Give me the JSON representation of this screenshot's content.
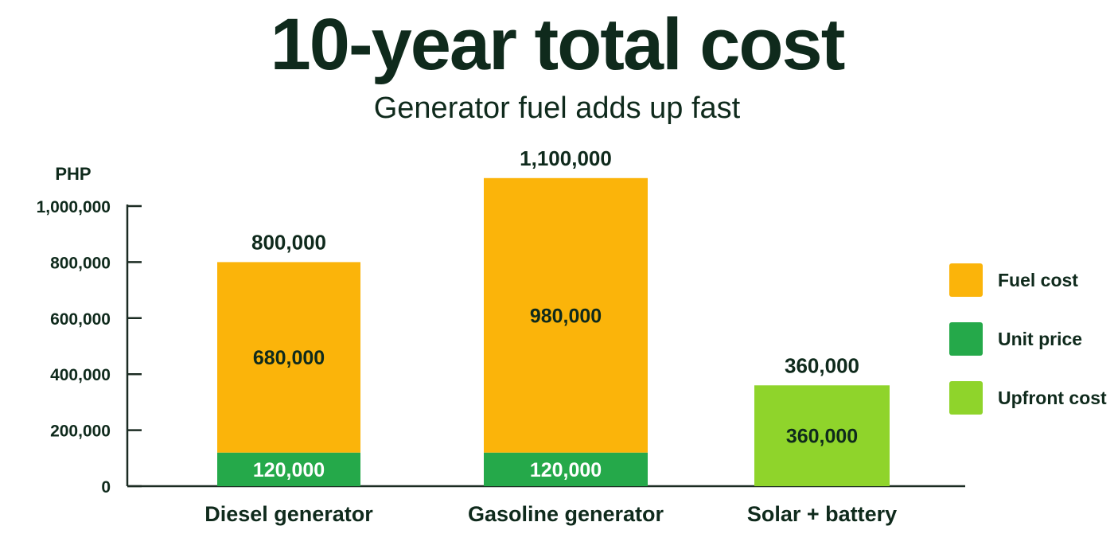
{
  "title": "10-year total cost",
  "subtitle": "Generator fuel adds up fast",
  "colors": {
    "text": "#0f2a1c",
    "fuel": "#fbb40a",
    "unit": "#25a94a",
    "upfront": "#8fd42b",
    "axis": "#1b2b22"
  },
  "legend": [
    {
      "label": "Fuel cost",
      "color": "#fbb40a"
    },
    {
      "label": "Unit price",
      "color": "#25a94a"
    },
    {
      "label": "Upfront cost",
      "color": "#8fd42b"
    }
  ],
  "chart_data": {
    "type": "bar",
    "stacked": true,
    "title": "10-year total cost",
    "subtitle": "Generator fuel adds up fast",
    "ylabel": "PHP",
    "xlabel": "",
    "ylim": [
      0,
      1000000
    ],
    "yticks": [
      0,
      200000,
      400000,
      600000,
      800000,
      1000000
    ],
    "ytick_labels": [
      "0",
      "200,000",
      "400,000",
      "600,000",
      "800,000",
      "1,000,000"
    ],
    "grid": false,
    "legend_position": "right",
    "categories": [
      "Diesel generator",
      "Gasoline generator",
      "Solar + battery"
    ],
    "series": [
      {
        "name": "Unit price",
        "values": [
          120000,
          120000,
          0
        ],
        "labels": [
          "120,000",
          "120,000",
          ""
        ]
      },
      {
        "name": "Fuel cost",
        "values": [
          680000,
          980000,
          0
        ],
        "labels": [
          "680,000",
          "980,000",
          ""
        ]
      },
      {
        "name": "Upfront cost",
        "values": [
          0,
          0,
          360000
        ],
        "labels": [
          "",
          "",
          "360,000"
        ]
      }
    ],
    "totals": [
      800000,
      1100000,
      360000
    ],
    "total_labels": [
      "800,000",
      "1,100,000",
      "360,000"
    ]
  }
}
